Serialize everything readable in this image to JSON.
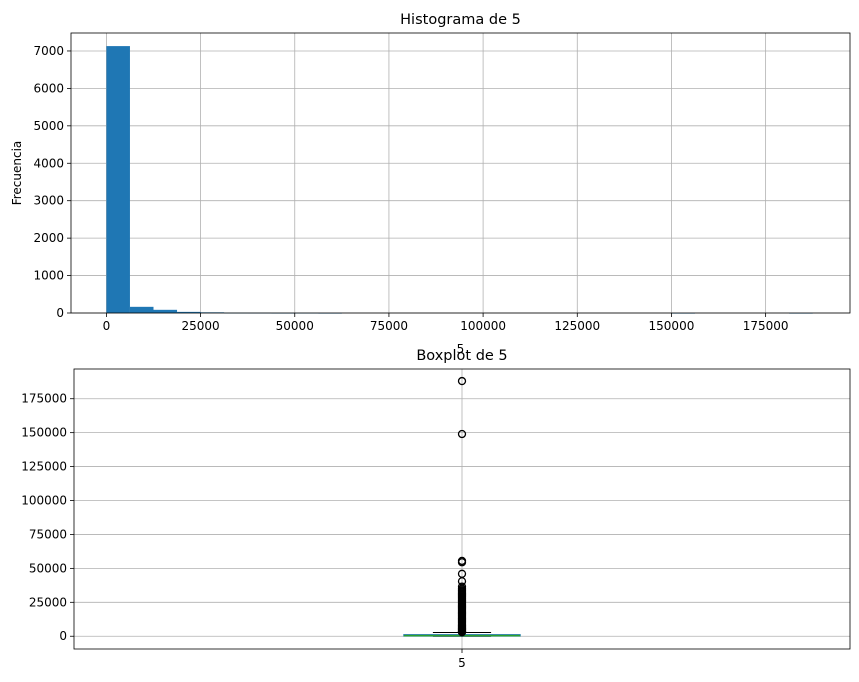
{
  "chart_data": [
    {
      "type": "bar",
      "title": "Histograma de 5",
      "xlabel": "5",
      "ylabel": "Frecuencia",
      "xlim": [
        -9400,
        197400
      ],
      "ylim": [
        0,
        7480
      ],
      "xticks": [
        0,
        25000,
        50000,
        75000,
        100000,
        125000,
        150000,
        175000
      ],
      "xtick_labels": [
        "0",
        "25000",
        "50000",
        "75000",
        "100000",
        "125000",
        "150000",
        "175000"
      ],
      "yticks": [
        0,
        1000,
        2000,
        3000,
        4000,
        5000,
        6000,
        7000
      ],
      "ytick_labels": [
        "0",
        "1000",
        "2000",
        "3000",
        "4000",
        "5000",
        "6000",
        "7000"
      ],
      "grid": true,
      "bar_color": "#1f77b4",
      "bin_edges": [
        0,
        6250,
        12500,
        18750,
        25000,
        31250,
        37500,
        43750,
        50000,
        56250,
        62500,
        68750,
        75000,
        81250,
        87500,
        93750,
        100000,
        106250,
        112500,
        118750,
        125000,
        131250,
        137500,
        143750,
        150000,
        156250,
        162500,
        168750,
        175000,
        181250,
        187500
      ],
      "values": [
        7130,
        165,
        85,
        30,
        18,
        6,
        5,
        2,
        3,
        1,
        0,
        0,
        0,
        0,
        0,
        0,
        0,
        0,
        0,
        0,
        0,
        0,
        0,
        0,
        1,
        0,
        0,
        0,
        0,
        1
      ]
    },
    {
      "type": "box",
      "title": "Boxplot de 5",
      "category": "5",
      "ylim": [
        -9400,
        196900
      ],
      "yticks": [
        0,
        25000,
        50000,
        75000,
        100000,
        125000,
        150000,
        175000
      ],
      "ytick_labels": [
        "0",
        "25000",
        "50000",
        "75000",
        "100000",
        "125000",
        "150000",
        "175000"
      ],
      "grid": true,
      "median_color": "#2ca02c",
      "stats": {
        "whislo": 0,
        "q1": 100,
        "median": 500,
        "q3": 1200,
        "whishi": 2800
      },
      "fliers": [
        3000,
        3300,
        3600,
        4000,
        4500,
        5000,
        5500,
        6000,
        6600,
        7200,
        7800,
        8500,
        9200,
        10000,
        10800,
        11600,
        12400,
        13200,
        14000,
        14800,
        15600,
        16400,
        17200,
        18000,
        18800,
        19600,
        20400,
        21200,
        22000,
        22800,
        23600,
        24400,
        25200,
        26000,
        26800,
        27600,
        28400,
        29200,
        30000,
        30800,
        31600,
        32400,
        33200,
        34000,
        35000,
        36500,
        40500,
        46000,
        54500,
        55500,
        149000,
        188000
      ]
    }
  ]
}
